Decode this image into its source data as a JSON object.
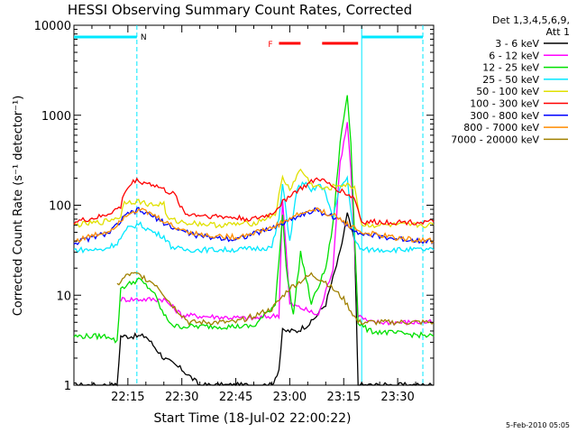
{
  "chart_data": {
    "type": "line",
    "title": "HESSI Observing Summary Count Rates, Corrected",
    "xlabel": "Start Time (18-Jul-02 22:00:22)",
    "ylabel": "Corrected Count Rate (s⁻¹ detector⁻¹)",
    "yscale": "log",
    "ylim": [
      1,
      10000
    ],
    "xlim_minutes": [
      0,
      100
    ],
    "x_ticks": [
      {
        "m": 15,
        "label": "22:15"
      },
      {
        "m": 30,
        "label": "22:30"
      },
      {
        "m": 45,
        "label": "22:45"
      },
      {
        "m": 60,
        "label": "23:00"
      },
      {
        "m": 75,
        "label": "23:15"
      },
      {
        "m": 90,
        "label": "23:30"
      }
    ],
    "y_ticks": [
      {
        "v": 1,
        "label": "1"
      },
      {
        "v": 10,
        "label": "10"
      },
      {
        "v": 100,
        "label": "100"
      },
      {
        "v": 1000,
        "label": "1000"
      },
      {
        "v": 10000,
        "label": "10000"
      }
    ],
    "legend_header": [
      "Det 1,3,4,5,6,9,",
      "Att 1"
    ],
    "series": [
      {
        "name": "3 - 6 keV",
        "color": "#000000",
        "points": [
          [
            0,
            1
          ],
          [
            12,
            1
          ],
          [
            13,
            3.5
          ],
          [
            20,
            3.5
          ],
          [
            25,
            2
          ],
          [
            30,
            1.5
          ],
          [
            35,
            1
          ],
          [
            55,
            1
          ],
          [
            57,
            1.5
          ],
          [
            58,
            4
          ],
          [
            62,
            4
          ],
          [
            66,
            5
          ],
          [
            70,
            8
          ],
          [
            74,
            30
          ],
          [
            76,
            80
          ],
          [
            78,
            40
          ],
          [
            79,
            1
          ],
          [
            100,
            1
          ]
        ]
      },
      {
        "name": "6 - 12 keV",
        "color": "#ff00ff",
        "points": [
          [
            13,
            9
          ],
          [
            25,
            9
          ],
          [
            30,
            6
          ],
          [
            50,
            5.5
          ],
          [
            57,
            6
          ],
          [
            58,
            120
          ],
          [
            60,
            8
          ],
          [
            64,
            7
          ],
          [
            68,
            6
          ],
          [
            72,
            20
          ],
          [
            74,
            300
          ],
          [
            76,
            850
          ],
          [
            77,
            250
          ],
          [
            79,
            6
          ],
          [
            82,
            5
          ],
          [
            100,
            5
          ]
        ]
      },
      {
        "name": "12 - 25 keV",
        "color": "#00e000",
        "points": [
          [
            0,
            3.5
          ],
          [
            10,
            3.5
          ],
          [
            12,
            3
          ],
          [
            13,
            12
          ],
          [
            18,
            15
          ],
          [
            22,
            11
          ],
          [
            25,
            6
          ],
          [
            28,
            4.5
          ],
          [
            50,
            4.5
          ],
          [
            56,
            8
          ],
          [
            58,
            80
          ],
          [
            59,
            20
          ],
          [
            61,
            6
          ],
          [
            63,
            30
          ],
          [
            66,
            8
          ],
          [
            70,
            20
          ],
          [
            72,
            60
          ],
          [
            74,
            500
          ],
          [
            76,
            1700
          ],
          [
            77,
            500
          ],
          [
            79,
            5
          ],
          [
            82,
            4
          ],
          [
            100,
            3.5
          ]
        ]
      },
      {
        "name": "25 - 50 keV",
        "color": "#00e8ff",
        "points": [
          [
            0,
            32
          ],
          [
            8,
            32
          ],
          [
            12,
            38
          ],
          [
            15,
            55
          ],
          [
            18,
            62
          ],
          [
            23,
            48
          ],
          [
            25,
            45
          ],
          [
            27,
            35
          ],
          [
            30,
            32
          ],
          [
            45,
            32
          ],
          [
            55,
            34
          ],
          [
            57,
            70
          ],
          [
            58,
            170
          ],
          [
            60,
            40
          ],
          [
            62,
            150
          ],
          [
            64,
            180
          ],
          [
            66,
            140
          ],
          [
            68,
            170
          ],
          [
            70,
            140
          ],
          [
            72,
            70
          ],
          [
            74,
            160
          ],
          [
            76,
            200
          ],
          [
            78,
            40
          ],
          [
            80,
            32
          ],
          [
            100,
            32
          ]
        ]
      },
      {
        "name": "50 - 100 keV",
        "color": "#e0e000",
        "points": [
          [
            0,
            60
          ],
          [
            8,
            65
          ],
          [
            13,
            75
          ],
          [
            14,
            110
          ],
          [
            18,
            110
          ],
          [
            22,
            100
          ],
          [
            25,
            105
          ],
          [
            26,
            70
          ],
          [
            30,
            65
          ],
          [
            40,
            60
          ],
          [
            50,
            63
          ],
          [
            56,
            80
          ],
          [
            58,
            200
          ],
          [
            60,
            150
          ],
          [
            63,
            250
          ],
          [
            66,
            170
          ],
          [
            70,
            150
          ],
          [
            74,
            170
          ],
          [
            78,
            160
          ],
          [
            80,
            60
          ],
          [
            100,
            60
          ]
        ]
      },
      {
        "name": "100 - 300 keV",
        "color": "#ff0000",
        "points": [
          [
            0,
            65
          ],
          [
            8,
            75
          ],
          [
            13,
            95
          ],
          [
            14,
            140
          ],
          [
            17,
            190
          ],
          [
            22,
            170
          ],
          [
            28,
            130
          ],
          [
            31,
            80
          ],
          [
            50,
            70
          ],
          [
            55,
            80
          ],
          [
            60,
            130
          ],
          [
            65,
            170
          ],
          [
            68,
            200
          ],
          [
            72,
            160
          ],
          [
            75,
            140
          ],
          [
            78,
            120
          ],
          [
            80,
            65
          ],
          [
            100,
            65
          ]
        ]
      },
      {
        "name": "300 - 800 keV",
        "color": "#0000ff",
        "points": [
          [
            0,
            38
          ],
          [
            10,
            50
          ],
          [
            15,
            80
          ],
          [
            18,
            88
          ],
          [
            22,
            75
          ],
          [
            28,
            55
          ],
          [
            35,
            45
          ],
          [
            45,
            42
          ],
          [
            55,
            55
          ],
          [
            62,
            75
          ],
          [
            67,
            88
          ],
          [
            72,
            75
          ],
          [
            76,
            60
          ],
          [
            80,
            48
          ],
          [
            90,
            42
          ],
          [
            100,
            40
          ]
        ]
      },
      {
        "name": "800 - 7000 keV",
        "color": "#ff8c00",
        "points": [
          [
            0,
            40
          ],
          [
            10,
            52
          ],
          [
            15,
            82
          ],
          [
            18,
            90
          ],
          [
            22,
            78
          ],
          [
            28,
            57
          ],
          [
            35,
            47
          ],
          [
            45,
            44
          ],
          [
            55,
            56
          ],
          [
            62,
            78
          ],
          [
            67,
            90
          ],
          [
            72,
            78
          ],
          [
            76,
            62
          ],
          [
            80,
            50
          ],
          [
            90,
            43
          ],
          [
            100,
            40
          ]
        ]
      },
      {
        "name": "7000 - 20000 keV",
        "color": "#a08000",
        "points": [
          [
            12,
            13
          ],
          [
            15,
            17
          ],
          [
            18,
            17
          ],
          [
            23,
            13
          ],
          [
            27,
            8
          ],
          [
            32,
            5
          ],
          [
            45,
            5
          ],
          [
            55,
            7
          ],
          [
            60,
            12
          ],
          [
            66,
            17
          ],
          [
            70,
            14
          ],
          [
            75,
            9
          ],
          [
            79,
            5
          ],
          [
            100,
            5
          ]
        ]
      }
    ],
    "annotations": {
      "night_intervals": [
        [
          0,
          17.5
        ],
        [
          80,
          97
        ]
      ],
      "saa_label": "N",
      "flare_label": "F",
      "flare_intervals": [
        [
          57,
          63
        ],
        [
          69,
          79
        ]
      ],
      "vertical_lines": [
        17.5,
        80,
        97
      ]
    }
  },
  "footer_date": "5-Feb-2010 05:05"
}
